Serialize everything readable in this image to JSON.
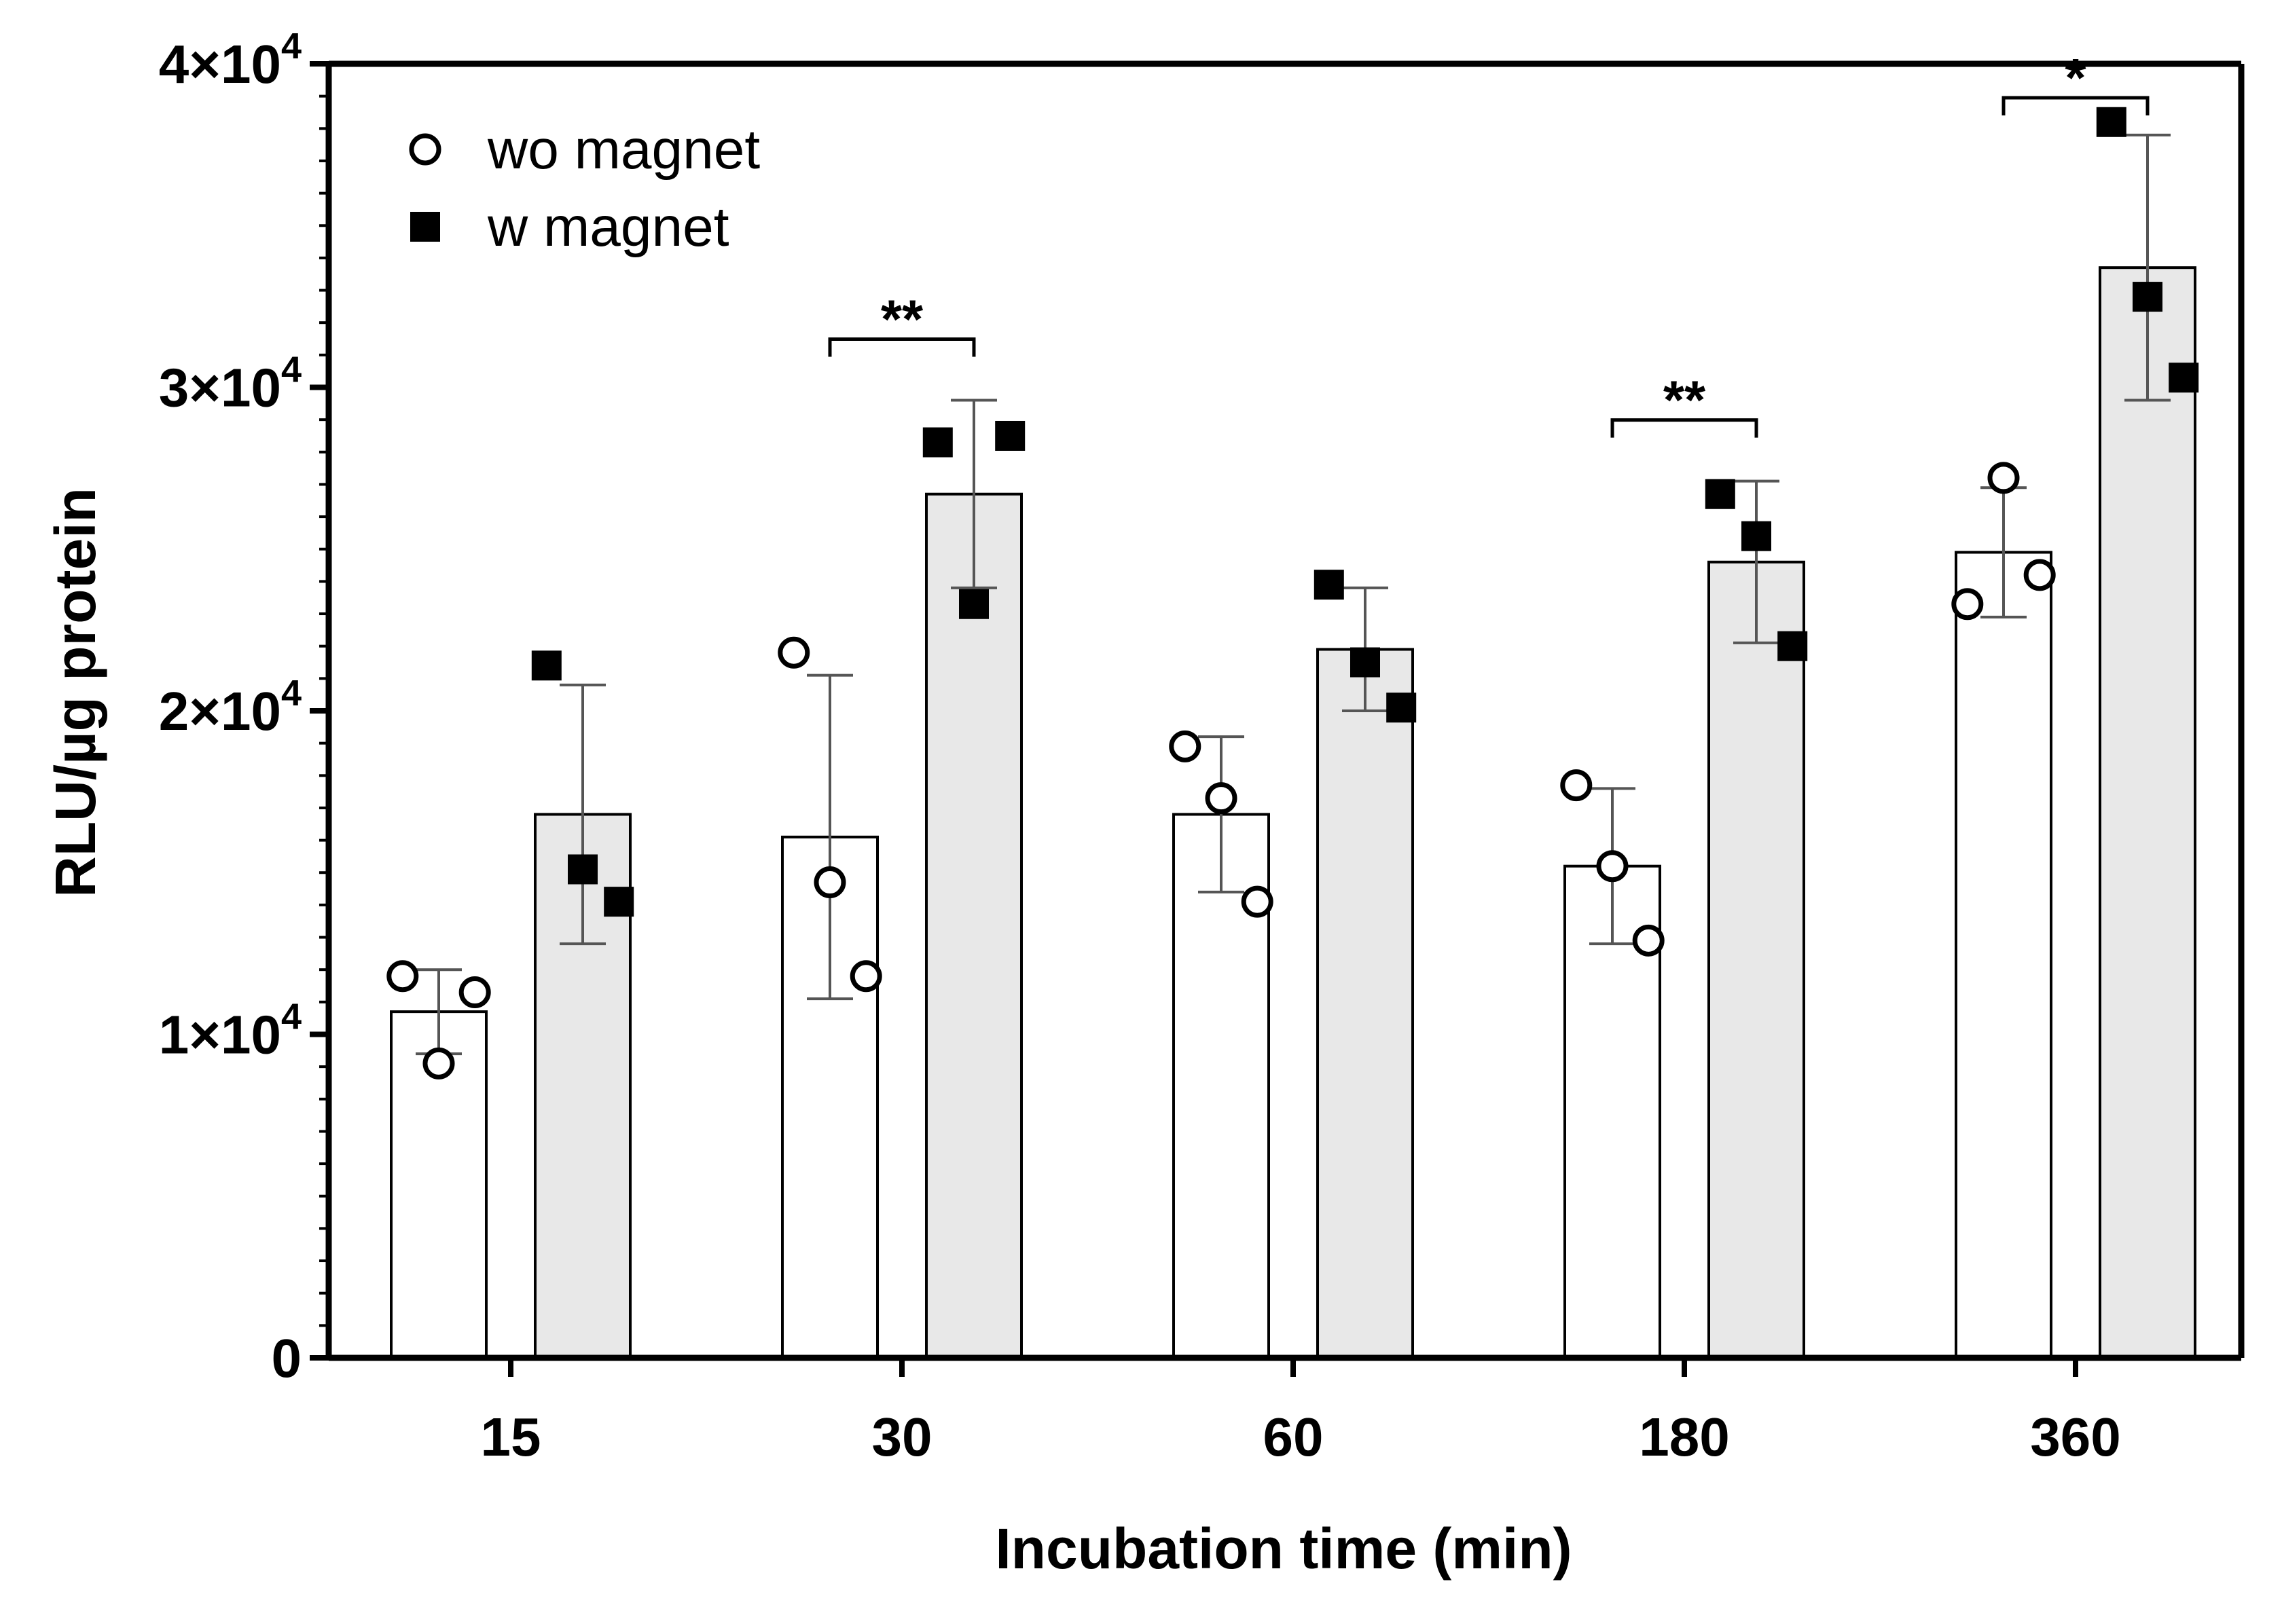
{
  "chart_data": {
    "type": "bar",
    "title": "",
    "xlabel": "Incubation time (min)",
    "ylabel": "RLU/µg protein",
    "ylim": [
      0,
      40000
    ],
    "grid": false,
    "legend_position": "top-left",
    "categories": [
      "15",
      "30",
      "60",
      "180",
      "360"
    ],
    "y_ticks": [
      {
        "value": 0,
        "base": "0",
        "exp": ""
      },
      {
        "value": 10000,
        "base": "1×10",
        "exp": "4"
      },
      {
        "value": 20000,
        "base": "2×10",
        "exp": "4"
      },
      {
        "value": 30000,
        "base": "3×10",
        "exp": "4"
      },
      {
        "value": 40000,
        "base": "4×10",
        "exp": "4"
      }
    ],
    "series": [
      {
        "name": "wo magnet",
        "marker": "open-circle",
        "fill": "#ffffff",
        "values": [
          10700,
          16100,
          16800,
          15200,
          24900
        ],
        "sd": [
          1300,
          5000,
          2400,
          2400,
          2000
        ],
        "points": [
          [
            11800,
            9100,
            11300
          ],
          [
            21800,
            14700,
            11800
          ],
          [
            18900,
            17300,
            14100
          ],
          [
            17700,
            15200,
            12900
          ],
          [
            23300,
            27200,
            24200
          ]
        ]
      },
      {
        "name": "w magnet",
        "marker": "filled-square",
        "fill": "#e8e8e8",
        "values": [
          16800,
          26700,
          21900,
          24600,
          33700
        ],
        "sd": [
          4000,
          2900,
          1900,
          2500,
          4100
        ],
        "points": [
          [
            21400,
            15100,
            14100
          ],
          [
            28300,
            23300,
            28500
          ],
          [
            23900,
            21500,
            20100
          ],
          [
            26700,
            25400,
            22000
          ],
          [
            38200,
            32800,
            30300
          ]
        ]
      }
    ],
    "significance": [
      {
        "category": "30",
        "label": "**"
      },
      {
        "category": "180",
        "label": "**"
      },
      {
        "category": "360",
        "label": "*"
      }
    ]
  }
}
